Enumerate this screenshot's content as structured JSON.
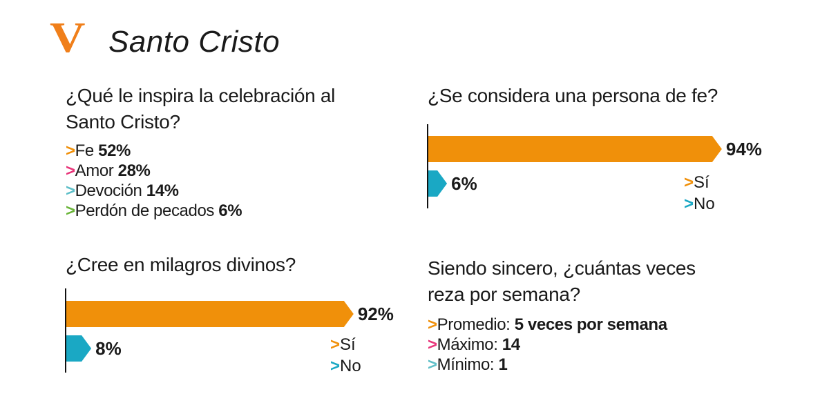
{
  "header": {
    "logo": "V",
    "title": "Santo Cristo"
  },
  "colors": {
    "orange": "#f0900a",
    "pink": "#e8357a",
    "teal": "#1aa8c4",
    "lightblue": "#5ebfc8",
    "green": "#6bb53a"
  },
  "q1": {
    "question_line1": "¿Qué le inspira la celebración al",
    "question_line2": "Santo Cristo?",
    "items": [
      {
        "label": "Fe",
        "value": "52%"
      },
      {
        "label": "Amor",
        "value": "28%"
      },
      {
        "label": "Devoción",
        "value": "14%"
      },
      {
        "label": "Perdón de pecados",
        "value": "6%"
      }
    ]
  },
  "q4": {
    "question_line1": "Siendo sincero, ¿cuántas veces",
    "question_line2": "reza por semana?",
    "items": [
      {
        "label": "Promedio:",
        "value": "5 veces por semana"
      },
      {
        "label": "Máximo:",
        "value": "14"
      },
      {
        "label": "Mínimo:",
        "value": "1"
      }
    ]
  },
  "arrow": ">",
  "chart_data": [
    {
      "type": "bar",
      "title": "¿Se considera una persona de fe?",
      "categories": [
        "Sí",
        "No"
      ],
      "values": [
        94,
        6
      ],
      "value_labels": [
        "94%",
        "6%"
      ],
      "legend": [
        "Sí",
        "No"
      ],
      "ylim": [
        0,
        100
      ]
    },
    {
      "type": "bar",
      "title": "¿Cree en milagros divinos?",
      "categories": [
        "Sí",
        "No"
      ],
      "values": [
        92,
        8
      ],
      "value_labels": [
        "92%",
        "8%"
      ],
      "legend": [
        "Sí",
        "No"
      ],
      "ylim": [
        0,
        100
      ]
    }
  ]
}
